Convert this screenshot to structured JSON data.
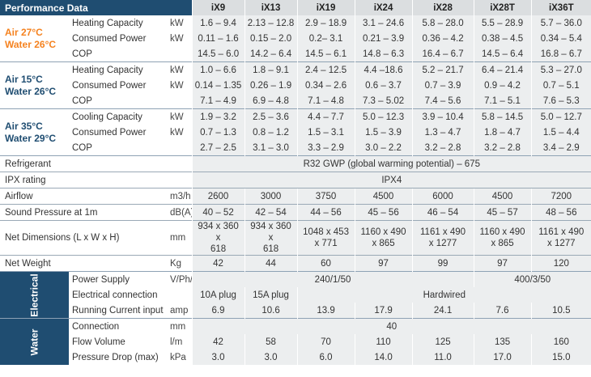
{
  "header": {
    "title": "Performance Data",
    "models": [
      "iX9",
      "iX13",
      "iX19",
      "iX24",
      "iX28",
      "iX28T",
      "iX36T"
    ]
  },
  "groups": [
    {
      "cond1": "Air 27°C",
      "cond2": "Water 26°C",
      "color": "orange",
      "rows": [
        {
          "label": "Heating Capacity",
          "unit": "kW",
          "values": [
            "1.6 – 9.4",
            "2.13 – 12.8",
            "2.9 – 18.9",
            "3.1 – 24.6",
            "5.8 – 28.0",
            "5.5 – 28.9",
            "5.7 – 36.0"
          ]
        },
        {
          "label": "Consumed Power",
          "unit": "kW",
          "values": [
            "0.11 – 1.6",
            "0.15 – 2.0",
            "0.2– 3.1",
            "0.21 – 3.9",
            "0.36 – 4.2",
            "0.38 – 4.5",
            "0.34 – 5.4"
          ]
        },
        {
          "label": "COP",
          "unit": "",
          "values": [
            "14.5 – 6.0",
            "14.2 – 6.4",
            "14.5 – 6.1",
            "14.8 – 6.3",
            "16.4 – 6.7",
            "14.5 – 6.4",
            "16.8 – 6.7"
          ]
        }
      ]
    },
    {
      "cond1": "Air 15°C",
      "cond2": "Water 26°C",
      "color": "blue",
      "rows": [
        {
          "label": "Heating Capacity",
          "unit": "kW",
          "values": [
            "1.0 – 6.6",
            "1.8 – 9.1",
            "2.4 – 12.5",
            "4.4 –18.6",
            "5.2 – 21.7",
            "6.4 – 21.4",
            "5.3 – 27.0"
          ]
        },
        {
          "label": "Consumed Power",
          "unit": "kW",
          "values": [
            "0.14 – 1.35",
            "0.26 – 1.9",
            "0.34 – 2.6",
            "0.6 – 3.7",
            "0.7 – 3.9",
            "0.9 – 4.2",
            "0.7 – 5.1"
          ]
        },
        {
          "label": "COP",
          "unit": "",
          "values": [
            "7.1 – 4.9",
            "6.9 – 4.8",
            "7.1 – 4.8",
            "7.3 – 5.02",
            "7.4 – 5.6",
            "7.1 – 5.1",
            "7.6 – 5.3"
          ]
        }
      ]
    },
    {
      "cond1": "Air 35°C",
      "cond2": "Water 29°C",
      "color": "blue",
      "rows": [
        {
          "label": "Cooling Capacity",
          "unit": "kW",
          "values": [
            "1.9 – 3.2",
            "2.5 – 3.6",
            "4.4 – 7.7",
            "5.0 – 12.3",
            "3.9 – 10.4",
            "5.8 – 14.5",
            "5.0 – 12.7"
          ]
        },
        {
          "label": "Consumed Power",
          "unit": "kW",
          "values": [
            "0.7 – 1.3",
            "0.8 – 1.2",
            "1.5 – 3.1",
            "1.5 – 3.9",
            "1.3 – 4.7",
            "1.8 – 4.7",
            "1.5 – 4.4"
          ]
        },
        {
          "label": "COP",
          "unit": "",
          "values": [
            "2.7 – 2.5",
            "3.1 – 3.0",
            "3.3 – 2.9",
            "3.0 – 2.2",
            "3.2 – 2.8",
            "3.2 – 2.8",
            "3.4 – 2.9"
          ]
        }
      ]
    }
  ],
  "general": {
    "refrigerant_label": "Refrigerant",
    "refrigerant_value": "R32 GWP (global warming potential) – 675",
    "ipx_label": "IPX rating",
    "ipx_value": "IPX4",
    "airflow": {
      "label": "Airflow",
      "unit": "m3/h",
      "values": [
        "2600",
        "3000",
        "3750",
        "4500",
        "6000",
        "4500",
        "7200"
      ]
    },
    "sound": {
      "label": "Sound Pressure at 1m",
      "unit": "dB(A)",
      "values": [
        "40 – 52",
        "42 – 54",
        "44 – 56",
        "45 – 56",
        "46 – 54",
        "45 – 57",
        "48 – 56"
      ]
    },
    "dims": {
      "label": "Net Dimensions (L x W x H)",
      "unit": "mm",
      "line1": [
        "934 x 360 x",
        "934 x 360 x",
        "1048 x 453",
        "1160 x 490",
        "1161 x 490",
        "1160 x 490",
        "1161 x 490"
      ],
      "line2": [
        "618",
        "618",
        "x 771",
        "x 865",
        "x 1277",
        "x 865",
        "x 1277"
      ]
    },
    "weight": {
      "label": "Net Weight",
      "unit": "Kg",
      "values": [
        "42",
        "44",
        "60",
        "97",
        "99",
        "97",
        "120"
      ]
    }
  },
  "electrical": {
    "section": "Electrical",
    "power": {
      "label": "Power Supply",
      "unit": "V/Ph/Hz",
      "value_a": "240/1/50",
      "value_b": "400/3/50"
    },
    "connection": {
      "label": "Electrical connection",
      "unit": "",
      "v1": "10A plug",
      "v2": "15A plug",
      "v_rest": "Hardwired"
    },
    "current": {
      "label": "Running Current input",
      "unit": "amp",
      "values": [
        "6.9",
        "10.6",
        "13.9",
        "17.9",
        "24.1",
        "7.6",
        "10.5"
      ]
    }
  },
  "water": {
    "section": "Water",
    "connection": {
      "label": "Connection",
      "unit": "mm",
      "value": "40"
    },
    "flow": {
      "label": "Flow Volume",
      "unit": "l/m",
      "values": [
        "42",
        "58",
        "70",
        "110",
        "125",
        "135",
        "160"
      ]
    },
    "drop": {
      "label": "Pressure Drop (max)",
      "unit": "kPa",
      "values": [
        "3.0",
        "3.0",
        "6.0",
        "14.0",
        "11.0",
        "17.0",
        "15.0"
      ]
    }
  }
}
